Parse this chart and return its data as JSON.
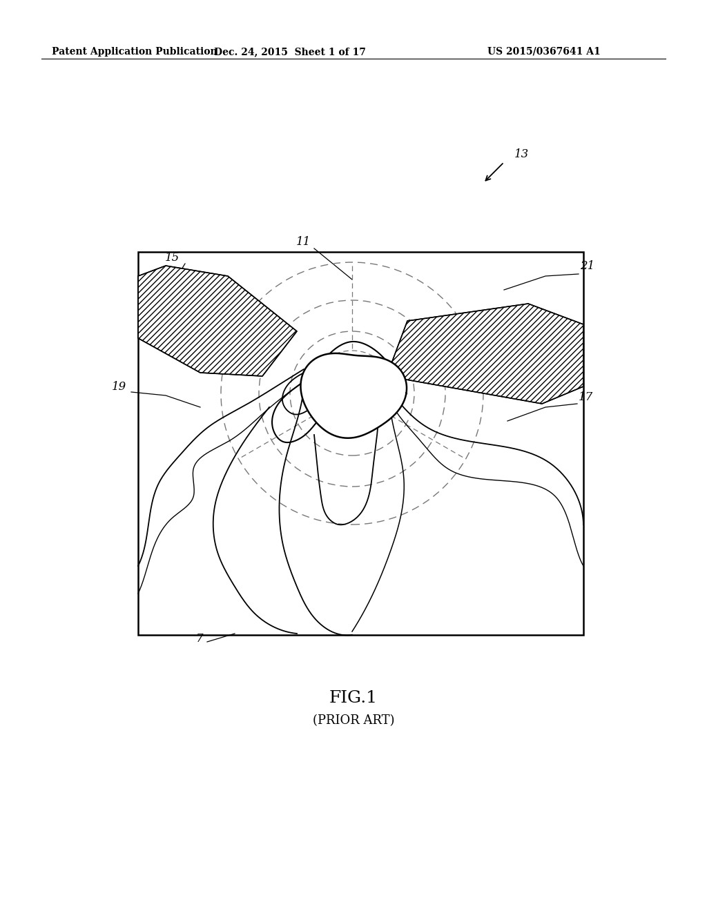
{
  "bg_color": "#ffffff",
  "header_left": "Patent Application Publication",
  "header_mid": "Dec. 24, 2015  Sheet 1 of 17",
  "header_right": "US 2015/0367641 A1",
  "fig_label": "FIG.1",
  "fig_sublabel": "(PRIOR ART)"
}
